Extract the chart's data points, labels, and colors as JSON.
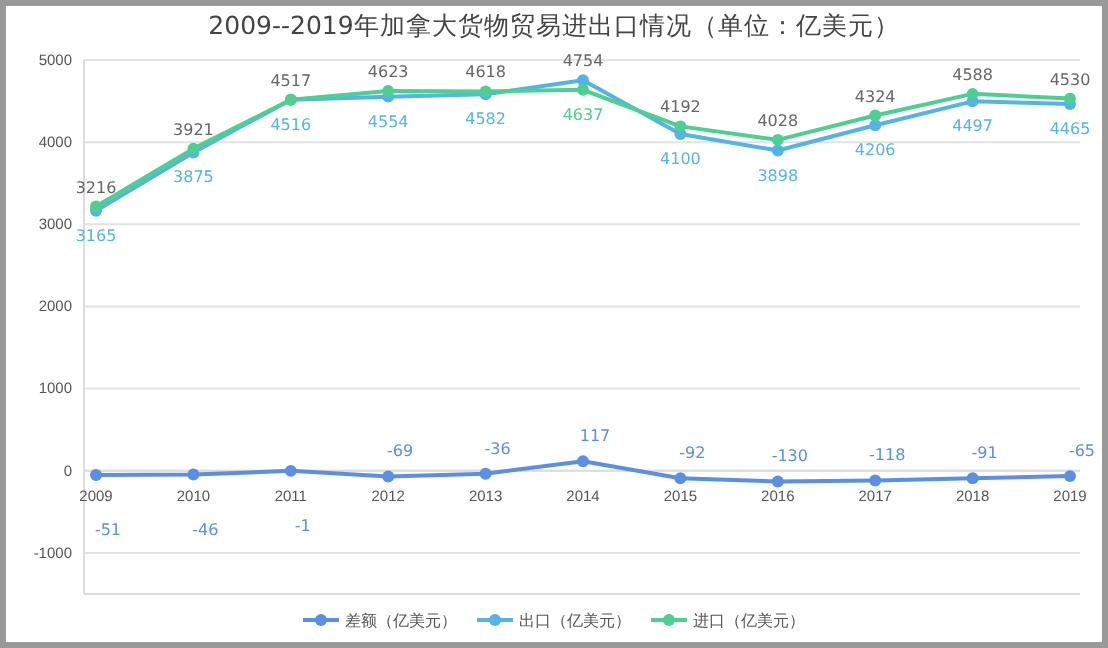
{
  "chart_data": {
    "type": "line",
    "title": "2009--2019年加拿大货物贸易进出口情况（单位：亿美元）",
    "categories": [
      "2009",
      "2010",
      "2011",
      "2012",
      "2013",
      "2014",
      "2015",
      "2016",
      "2017",
      "2018",
      "2019"
    ],
    "series": [
      {
        "name": "差额（亿美元）",
        "color": "#5b8fe3",
        "values": [
          -51,
          -46,
          -1,
          -69,
          -36,
          117,
          -92,
          -130,
          -118,
          -91,
          -65
        ]
      },
      {
        "name": "出口（亿美元）",
        "color": "#55b3e6",
        "values": [
          3165,
          3875,
          4516,
          4554,
          4582,
          4754,
          4100,
          3898,
          4206,
          4497,
          4465
        ]
      },
      {
        "name": "进口（亿美元）",
        "color": "#4ccf91",
        "values": [
          3216,
          3921,
          4517,
          4623,
          4618,
          4637,
          4192,
          4028,
          4324,
          4588,
          4530
        ]
      }
    ],
    "ylim": [
      -1500,
      5000
    ],
    "yticks": [
      -1000,
      0,
      1000,
      2000,
      3000,
      4000,
      5000
    ],
    "grid": "y",
    "legend": "bottom",
    "marker": "circle",
    "line_style": "solid",
    "data_labels": true
  }
}
